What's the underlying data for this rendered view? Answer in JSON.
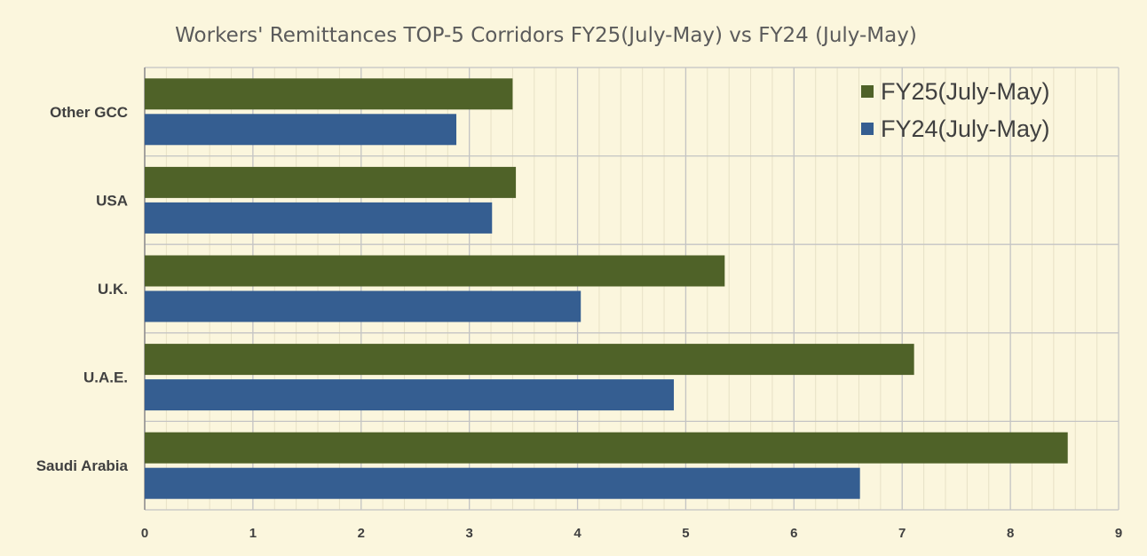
{
  "chart_data": {
    "type": "bar",
    "orientation": "horizontal",
    "title": "Workers' Remittances TOP-5 Corridors FY25(July-May) vs FY24 (July-May)",
    "categories": [
      "Other GCC",
      "USA",
      "U.K.",
      "U.A.E.",
      "Saudi Arabia"
    ],
    "series": [
      {
        "name": "FY25(July-May)",
        "color": "#4f6228",
        "values": [
          3.4,
          3.43,
          5.36,
          7.11,
          8.53
        ]
      },
      {
        "name": "FY24(July-May)",
        "color": "#355e91",
        "values": [
          2.88,
          3.21,
          4.03,
          4.89,
          6.61
        ]
      }
    ],
    "xlim": [
      0,
      9
    ],
    "xticks": [
      "0",
      "1",
      "2",
      "3",
      "4",
      "5",
      "6",
      "7",
      "8",
      "9"
    ],
    "grid": true,
    "legend_position": "top-right"
  }
}
